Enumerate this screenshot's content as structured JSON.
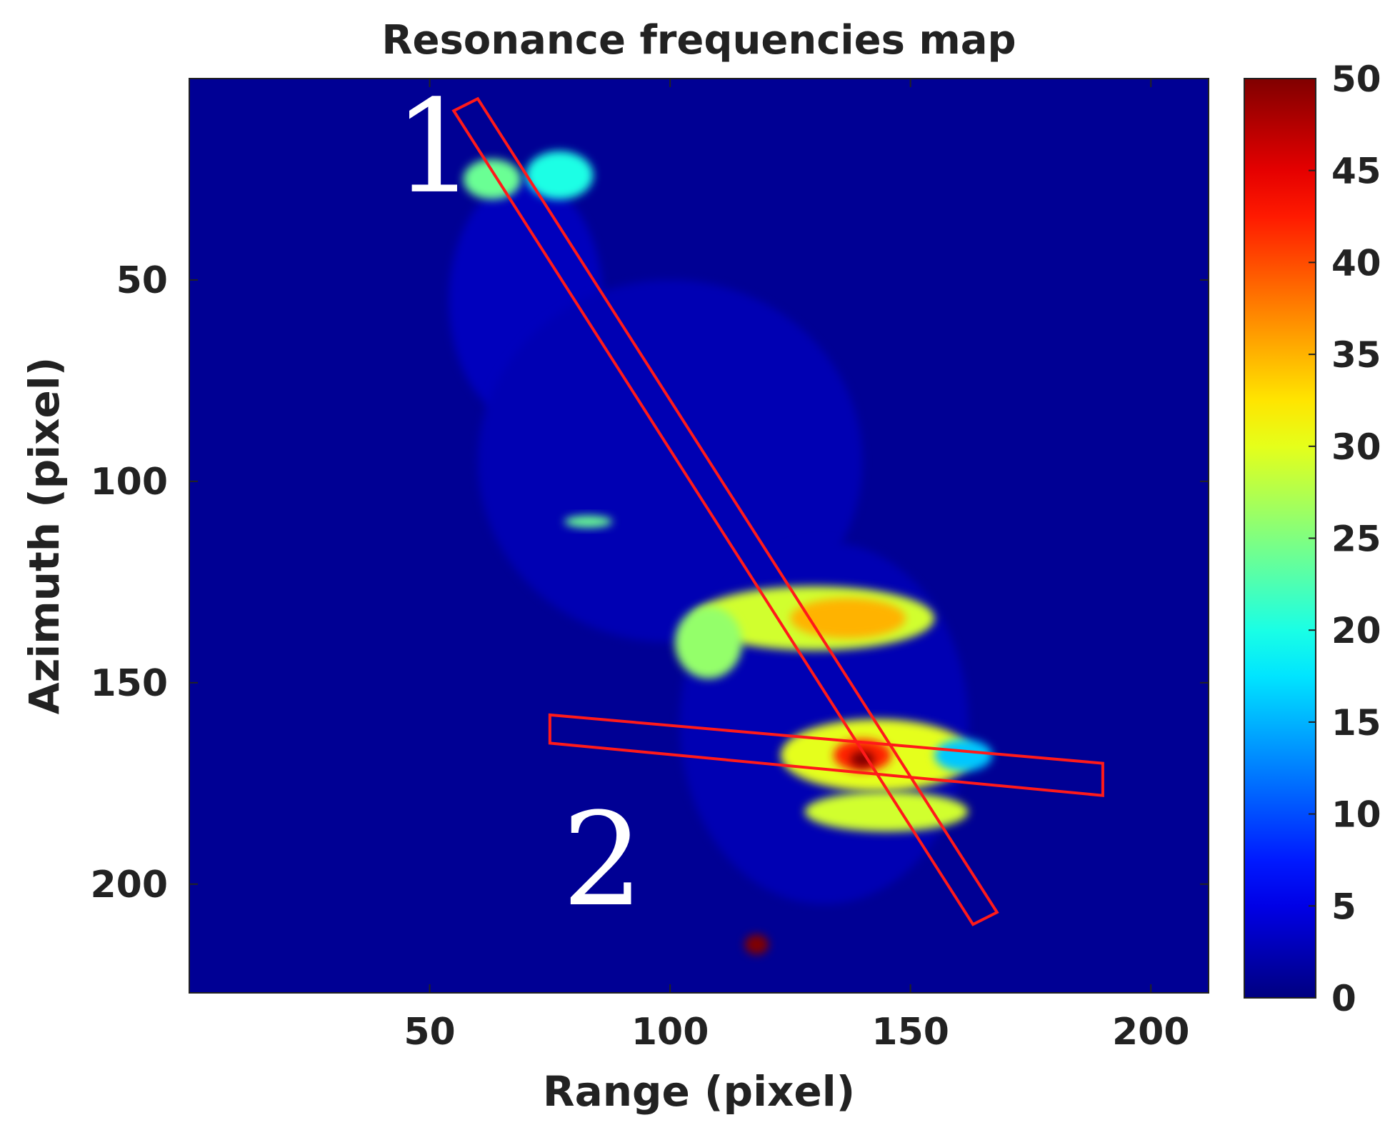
{
  "chart_data": {
    "type": "heatmap",
    "title": "Resonance frequencies map",
    "xlabel": "Range (pixel)",
    "ylabel": "Azimuth (pixel)",
    "xlim": [
      0,
      212
    ],
    "ylim": [
      227,
      0
    ],
    "x_ticks": [
      50,
      100,
      150,
      200
    ],
    "y_ticks": [
      50,
      100,
      150,
      200
    ],
    "colormap": "jet",
    "colorbar": {
      "range": [
        0,
        50
      ],
      "ticks": [
        0,
        5,
        10,
        15,
        20,
        25,
        30,
        35,
        40,
        45,
        50
      ]
    },
    "background_value": 1,
    "regions": [
      {
        "name": "faint-structure-north",
        "cx": 70,
        "cy": 55,
        "rx": 16,
        "ry": 30,
        "value": 3
      },
      {
        "name": "faint-structure-mid",
        "cx": 100,
        "cy": 95,
        "rx": 40,
        "ry": 45,
        "value": 2.5
      },
      {
        "name": "faint-structure-south",
        "cx": 132,
        "cy": 160,
        "rx": 30,
        "ry": 45,
        "value": 2.5
      },
      {
        "name": "hotspot-top-left",
        "cx": 63,
        "cy": 25,
        "rx": 6,
        "ry": 5,
        "value": 24
      },
      {
        "name": "hotspot-top-right",
        "cx": 77,
        "cy": 24,
        "rx": 7,
        "ry": 6,
        "value": 20
      },
      {
        "name": "hotspot-small-bar",
        "cx": 83,
        "cy": 110,
        "rx": 5,
        "ry": 1.5,
        "value": 24
      },
      {
        "name": "hotspot-band-upper",
        "cx": 130,
        "cy": 134,
        "rx": 25,
        "ry": 8,
        "value": 29
      },
      {
        "name": "hotspot-band-upper-core",
        "cx": 137,
        "cy": 134,
        "rx": 12,
        "ry": 5,
        "value": 35
      },
      {
        "name": "hotspot-band-upper-left",
        "cx": 108,
        "cy": 140,
        "rx": 7,
        "ry": 9,
        "value": 26
      },
      {
        "name": "hotspot-band-lower",
        "cx": 143,
        "cy": 168,
        "rx": 20,
        "ry": 9,
        "value": 30
      },
      {
        "name": "hotspot-band-lower-core",
        "cx": 140,
        "cy": 168,
        "rx": 6,
        "ry": 4,
        "value": 42
      },
      {
        "name": "hotspot-band-lower-max",
        "cx": 140,
        "cy": 169,
        "rx": 2.5,
        "ry": 2,
        "value": 50
      },
      {
        "name": "hotspot-band-lower-south",
        "cx": 145,
        "cy": 182,
        "rx": 17,
        "ry": 5,
        "value": 29
      },
      {
        "name": "hotspot-band-lower-east",
        "cx": 161,
        "cy": 168,
        "rx": 6,
        "ry": 4,
        "value": 16
      },
      {
        "name": "hotspot-bottom",
        "cx": 118,
        "cy": 215,
        "rx": 2.5,
        "ry": 2.5,
        "value": 50
      }
    ],
    "profiles": [
      {
        "label": "1",
        "corners": [
          [
            55,
            8
          ],
          [
            60,
            5
          ],
          [
            168,
            207
          ],
          [
            163,
            210
          ]
        ],
        "label_pos": [
          51,
          28
        ]
      },
      {
        "label": "2",
        "corners": [
          [
            75,
            158
          ],
          [
            190,
            170
          ],
          [
            190,
            178
          ],
          [
            75,
            165
          ]
        ],
        "label_pos": [
          86,
          205
        ]
      }
    ]
  }
}
